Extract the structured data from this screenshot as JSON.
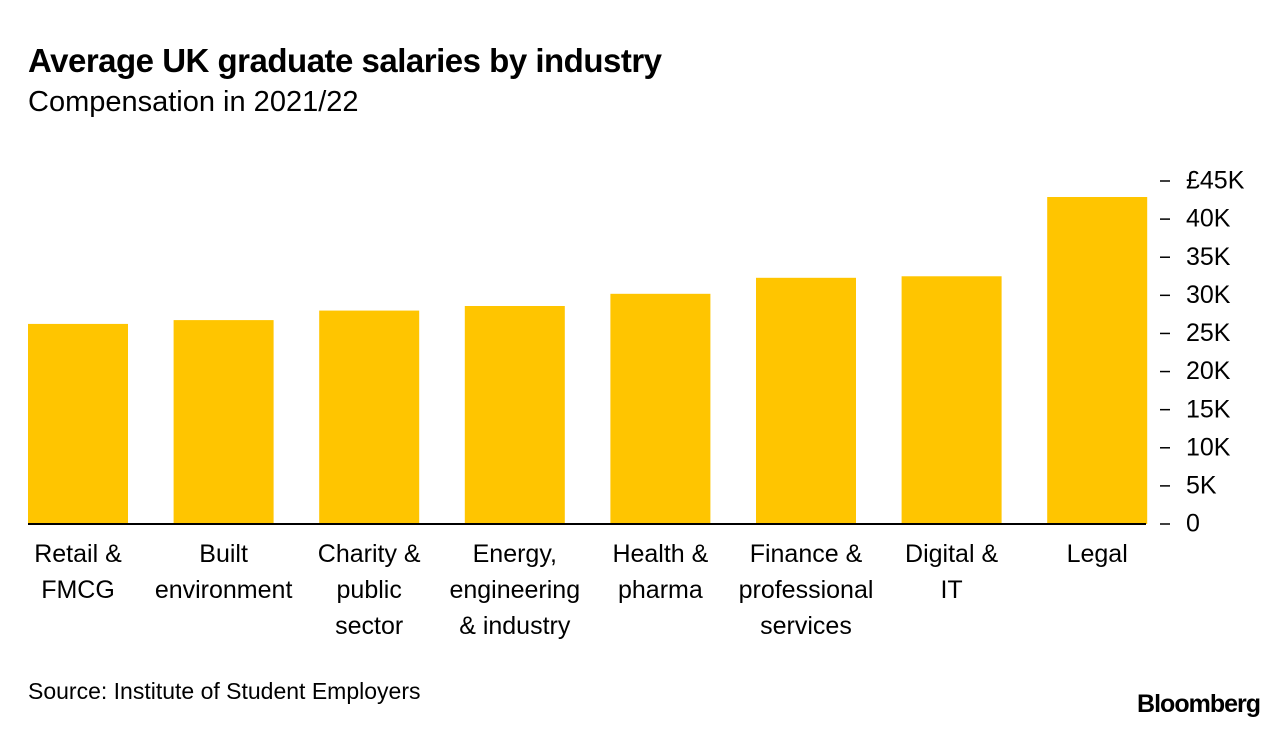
{
  "chart_data": {
    "type": "bar",
    "title": "Average UK graduate salaries by industry",
    "subtitle": "Compensation in 2021/22",
    "categories": [
      "Retail & FMCG",
      "Built environment",
      "Charity & public sector",
      "Energy, engineering & industry",
      "Health & pharma",
      "Finance & professional services",
      "Digital & IT",
      "Legal"
    ],
    "values": [
      26250,
      26750,
      28000,
      28600,
      30200,
      32300,
      32500,
      42900
    ],
    "color": "#ffc500",
    "ylim": [
      0,
      45000
    ],
    "yticks": [
      0,
      {
        "value": 5000,
        "label": "5K"
      },
      {
        "value": 10000,
        "label": "10K"
      },
      {
        "value": 15000,
        "label": "15K"
      },
      {
        "value": 20000,
        "label": "20K"
      },
      {
        "value": 25000,
        "label": "25K"
      },
      {
        "value": 30000,
        "label": "30K"
      },
      {
        "value": 35000,
        "label": "35K"
      },
      {
        "value": 40000,
        "label": "40K"
      },
      {
        "value": 45000,
        "label": "£45K"
      }
    ],
    "source": "Source: Institute of Student Employers",
    "brand": "Bloomberg"
  }
}
